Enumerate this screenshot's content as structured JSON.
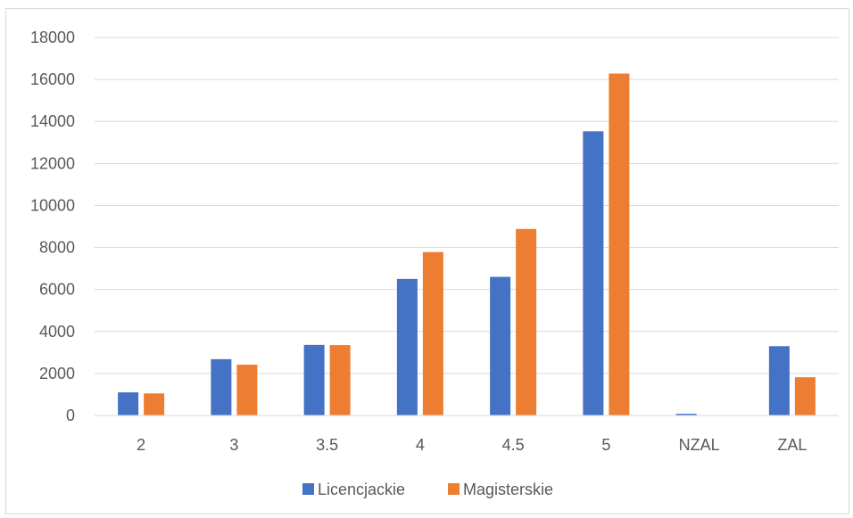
{
  "chart_data": {
    "type": "bar",
    "title": "",
    "xlabel": "",
    "ylabel": "",
    "categories": [
      "2",
      "3",
      "3.5",
      "4",
      "4.5",
      "5",
      "NZAL",
      "ZAL"
    ],
    "series": [
      {
        "name": "Licencjackie",
        "color": "#4472c4",
        "values": [
          1100,
          2680,
          3360,
          6500,
          6600,
          13530,
          80,
          3300
        ]
      },
      {
        "name": "Magisterskie",
        "color": "#ed7d31",
        "values": [
          1050,
          2420,
          3350,
          7780,
          8880,
          16280,
          0,
          1820
        ]
      }
    ],
    "ylim": [
      0,
      18000
    ],
    "yticks": [
      "0",
      "2000",
      "4000",
      "6000",
      "8000",
      "10000",
      "12000",
      "14000",
      "16000",
      "18000"
    ],
    "grid": true,
    "legend_position": "bottom"
  }
}
